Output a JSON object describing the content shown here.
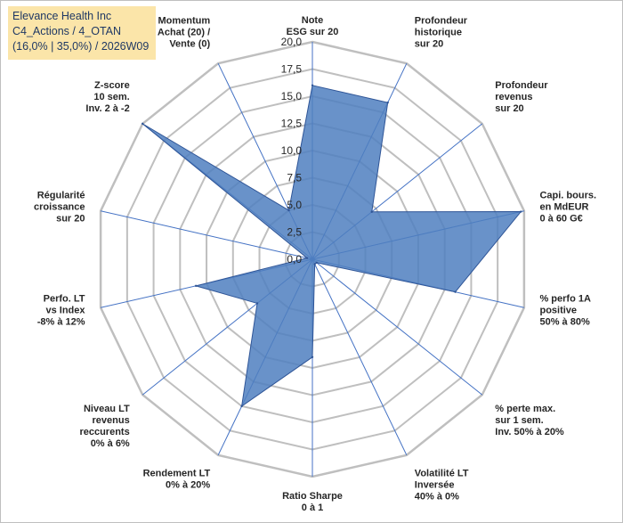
{
  "header": {
    "line1": "Elevance Health Inc",
    "line2": "C4_Actions / 4_OTAN",
    "line3": "(16,0% | 35,0%) / 2026W09"
  },
  "chart_data": {
    "type": "radar",
    "title": "Elevance Health Inc",
    "rmin": 0,
    "rmax": 20,
    "ticks": [
      "0,0",
      "2,5",
      "5,0",
      "7,5",
      "10,0",
      "12,5",
      "15,0",
      "17,5",
      "20,0"
    ],
    "axes": [
      {
        "label": [
          "Note",
          "ESG sur 20"
        ],
        "value": 16.0
      },
      {
        "label": [
          "Profondeur",
          "historique",
          "sur 20"
        ],
        "value": 16.0
      },
      {
        "label": [
          "Profondeur",
          "revenus",
          "sur 20"
        ],
        "value": 7.0
      },
      {
        "label": [
          "Capi. bours.",
          "en MdEUR",
          "0 à 60 G€"
        ],
        "value": 19.7
      },
      {
        "label": [
          "% perfo 1A",
          "positive",
          "50% à 80%"
        ],
        "value": 13.5
      },
      {
        "label": [
          "% perte max.",
          "sur 1 sem.",
          "Inv. 50% à 20%"
        ],
        "value": 0.5
      },
      {
        "label": [
          "Volatilité LT",
          "Inversée",
          "40% à 0%"
        ],
        "value": 0.5
      },
      {
        "label": [
          "Ratio Sharpe",
          "0 à 1"
        ],
        "value": 9.0
      },
      {
        "label": [
          "Rendement LT",
          "0% à 20%"
        ],
        "value": 15.0
      },
      {
        "label": [
          "Niveau LT",
          "revenus",
          "reccurents",
          "0% à 6%"
        ],
        "value": 6.5
      },
      {
        "label": [
          "Perfo. LT",
          "vs Index",
          "-8% à 12%"
        ],
        "value": 11.0
      },
      {
        "label": [
          "Régularité",
          "croissance",
          "sur 20"
        ],
        "value": 0.5
      },
      {
        "label": [
          "Z-score",
          "10 sem.",
          "Inv. 2 à -2"
        ],
        "value": 20.0
      },
      {
        "label": [
          "Momentum",
          "Achat (20) /",
          "Vente (0)"
        ],
        "value": 5.0
      }
    ],
    "colors": {
      "fill": "#4f7fc0",
      "stroke": "#2f5597",
      "grid": "#bfbfbf",
      "spoke": "#4472c4",
      "title_bg": "#fbe5a9",
      "title_text": "#1f3864"
    }
  }
}
